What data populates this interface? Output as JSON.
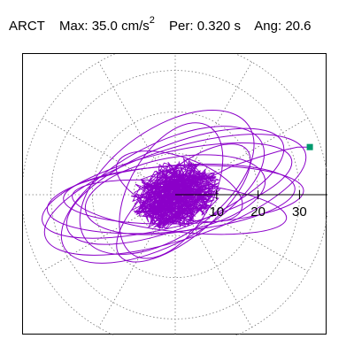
{
  "header": {
    "station": "ARCT",
    "max_label": "Max:",
    "max_value": "35.0",
    "max_unit": "cm/s",
    "max_unit_sup": "2",
    "per_label": "Per:",
    "per_value": "0.320 s",
    "ang_label": "Ang:",
    "ang_value": "20.6"
  },
  "colors": {
    "trace": "#8b00c9",
    "marker": "#009a6e",
    "grid": "#777777",
    "axis": "#000000"
  },
  "chart_data": {
    "type": "polar-orbit",
    "title": "",
    "radial_ticks": [
      10,
      20,
      30
    ],
    "radial_tick_labels": [
      "10",
      "20",
      "30"
    ],
    "radial_max": 37,
    "angular_grid_step_deg": 30,
    "grid": true,
    "end_point": {
      "x": 32.5,
      "y": 11.5
    },
    "series": [
      {
        "orbit_ellipses": [
          {
            "cx": 0,
            "cy": 0,
            "a": 33,
            "b": 11,
            "rot_deg": 18
          },
          {
            "cx": -2,
            "cy": 1,
            "a": 31,
            "b": 9,
            "rot_deg": 14
          },
          {
            "cx": -1,
            "cy": -1,
            "a": 30,
            "b": 8,
            "rot_deg": 5
          },
          {
            "cx": 2,
            "cy": 0,
            "a": 29,
            "b": 7,
            "rot_deg": 2
          },
          {
            "cx": 0,
            "cy": 2,
            "a": 28,
            "b": 10,
            "rot_deg": 22
          },
          {
            "cx": -3,
            "cy": 0,
            "a": 27,
            "b": 12,
            "rot_deg": 28
          },
          {
            "cx": 1,
            "cy": -3,
            "a": 26,
            "b": 6,
            "rot_deg": -6
          },
          {
            "cx": -2,
            "cy": 3,
            "a": 24,
            "b": 13,
            "rot_deg": 35
          },
          {
            "cx": 0,
            "cy": 0,
            "a": 22,
            "b": 9,
            "rot_deg": 10
          },
          {
            "cx": 2,
            "cy": -2,
            "a": 20,
            "b": 8,
            "rot_deg": 40
          },
          {
            "cx": -1,
            "cy": 1,
            "a": 18,
            "b": 10,
            "rot_deg": 60
          },
          {
            "cx": 1,
            "cy": 2,
            "a": 16,
            "b": 7,
            "rot_deg": -20
          }
        ],
        "tail": [
          [
            -0.5,
            0.5
          ],
          [
            4,
            2.5
          ],
          [
            9,
            4.5
          ],
          [
            14,
            7
          ],
          [
            20,
            9
          ],
          [
            25,
            10.5
          ],
          [
            29.5,
            11.5
          ],
          [
            32.5,
            11.5
          ]
        ]
      }
    ]
  }
}
